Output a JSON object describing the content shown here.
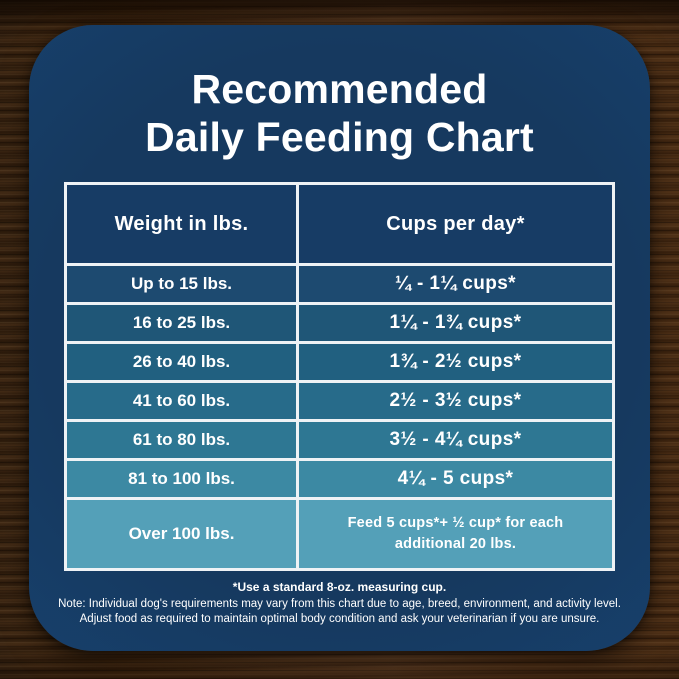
{
  "title": {
    "line1": "Recommended",
    "line2": "Daily Feeding Chart"
  },
  "table": {
    "headers": [
      "Weight in lbs.",
      "Cups per day*"
    ],
    "rows": [
      {
        "weight": "Up to 15 lbs.",
        "cups": "¼ - 1¼ cups*"
      },
      {
        "weight": "16 to 25 lbs.",
        "cups": "1¼ - 1¾ cups*"
      },
      {
        "weight": "26 to 40 lbs.",
        "cups": "1¾ - 2½ cups*"
      },
      {
        "weight": "41 to 60 lbs.",
        "cups": "2½ - 3½ cups*"
      },
      {
        "weight": "61 to 80 lbs.",
        "cups": "3½ - 4¼ cups*"
      },
      {
        "weight": "81 to 100 lbs.",
        "cups": "4¼ - 5 cups*"
      },
      {
        "weight": "Over 100 lbs.",
        "cups": "Feed 5 cups*+ ½ cup* for each additional 20 lbs."
      }
    ],
    "header_bg": "#173c65",
    "row_colors": [
      "#1d4a70",
      "#1f5677",
      "#216080",
      "#276b8a",
      "#2e7793",
      "#3c89a3",
      "#54a0b8"
    ],
    "border_color": "#eef2f5"
  },
  "footnotes": {
    "line1": "*Use a standard 8-oz. measuring cup.",
    "line2": "Note: Individual dog's requirements may vary from this chart due to age, breed, environment, and activity level.",
    "line3": "Adjust food as required to maintain optimal body condition and ask your veterinarian if you are unsure."
  },
  "colors": {
    "card_navy": "#16395f",
    "card_edge_blue": "#1e5b9b",
    "text_white": "#ffffff",
    "wood_brown": "#5a3a22"
  },
  "chart_data": {
    "type": "table",
    "title": "Recommended Daily Feeding Chart",
    "columns": [
      "Weight in lbs.",
      "Cups per day*"
    ],
    "rows": [
      [
        "Up to 15 lbs.",
        "¼ - 1¼ cups*"
      ],
      [
        "16 to 25 lbs.",
        "1¼ - 1¾ cups*"
      ],
      [
        "26 to 40 lbs.",
        "1¾ - 2½ cups*"
      ],
      [
        "41 to 60 lbs.",
        "2½ - 3½ cups*"
      ],
      [
        "61 to 80 lbs.",
        "3½ - 4¼ cups*"
      ],
      [
        "81 to 100 lbs.",
        "4¼ - 5 cups*"
      ],
      [
        "Over 100 lbs.",
        "Feed 5 cups*+ ½ cup* for each additional 20 lbs."
      ]
    ],
    "footnote": "*Use a standard 8-oz. measuring cup."
  }
}
